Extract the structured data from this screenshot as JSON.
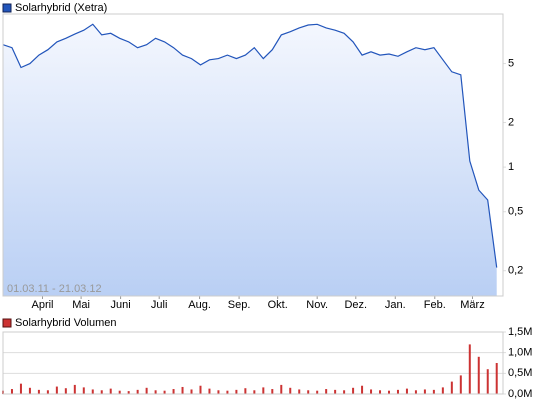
{
  "chart_data": [
    {
      "type": "line",
      "title": "Solarhybrid (Xetra)",
      "range_label": "01.03.11 - 21.03.12",
      "color": "#2255bb",
      "log_scale": true,
      "xlim": [
        0,
        55.7
      ],
      "xticks": [
        {
          "value": 4.4,
          "label": "April"
        },
        {
          "value": 8.7,
          "label": "Mai"
        },
        {
          "value": 13.1,
          "label": "Juni"
        },
        {
          "value": 17.4,
          "label": "Juli"
        },
        {
          "value": 21.9,
          "label": "Aug."
        },
        {
          "value": 26.3,
          "label": "Sep."
        },
        {
          "value": 30.6,
          "label": "Okt."
        },
        {
          "value": 35.0,
          "label": "Nov."
        },
        {
          "value": 39.3,
          "label": "Dez."
        },
        {
          "value": 43.7,
          "label": "Jan."
        },
        {
          "value": 48.1,
          "label": "Feb."
        },
        {
          "value": 52.3,
          "label": "März"
        }
      ],
      "ylim": [
        0.135,
        10.8
      ],
      "yticks": [
        5,
        2,
        1,
        {
          "value": 0.5,
          "label": "0,5"
        },
        {
          "value": 0.2,
          "label": "0,2"
        }
      ],
      "values": [
        6.7,
        6.4,
        4.7,
        5.0,
        5.7,
        6.2,
        7.0,
        7.4,
        7.9,
        8.4,
        9.2,
        7.8,
        8.0,
        7.4,
        7.0,
        6.4,
        6.7,
        7.4,
        7.0,
        6.4,
        5.7,
        5.4,
        4.9,
        5.3,
        5.4,
        5.7,
        5.4,
        5.7,
        6.4,
        5.4,
        6.2,
        7.8,
        8.2,
        8.7,
        9.1,
        9.2,
        8.7,
        8.4,
        8.0,
        7.0,
        5.7,
        6.0,
        5.7,
        5.8,
        5.6,
        6.0,
        6.4,
        6.2,
        6.4,
        5.3,
        4.4,
        4.2,
        1.1,
        0.7,
        0.6,
        0.21
      ]
    },
    {
      "type": "bar",
      "title": "Solarhybrid Volumen",
      "color": "#cc3333",
      "xlim": [
        0,
        55.7
      ],
      "ylim": [
        0,
        1500000
      ],
      "yticks": [
        {
          "value": 0,
          "label": "0,0M"
        },
        {
          "value": 500000,
          "label": "0,5M"
        },
        {
          "value": 1000000,
          "label": "1,0M"
        },
        {
          "value": 1500000,
          "label": "1,5M"
        }
      ],
      "grid": true,
      "values": [
        80000,
        120000,
        250000,
        150000,
        100000,
        90000,
        180000,
        140000,
        220000,
        160000,
        110000,
        90000,
        130000,
        80000,
        70000,
        100000,
        150000,
        90000,
        80000,
        120000,
        170000,
        110000,
        200000,
        130000,
        90000,
        80000,
        100000,
        140000,
        90000,
        160000,
        120000,
        220000,
        150000,
        110000,
        90000,
        80000,
        120000,
        100000,
        90000,
        150000,
        200000,
        110000,
        90000,
        80000,
        100000,
        130000,
        90000,
        110000,
        100000,
        160000,
        300000,
        450000,
        1200000,
        900000,
        600000,
        750000
      ]
    }
  ]
}
